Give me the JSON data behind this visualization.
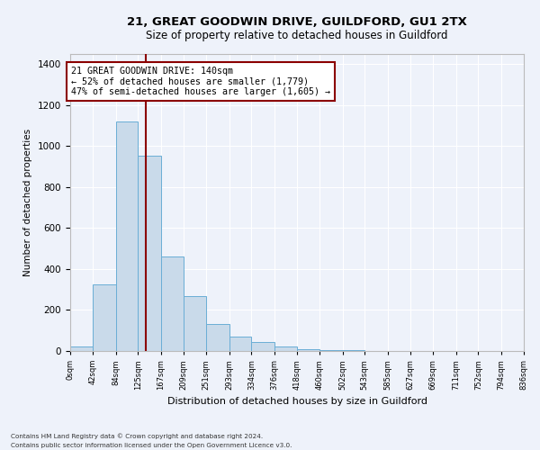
{
  "title": "21, GREAT GOODWIN DRIVE, GUILDFORD, GU1 2TX",
  "subtitle": "Size of property relative to detached houses in Guildford",
  "xlabel": "Distribution of detached houses by size in Guildford",
  "ylabel": "Number of detached properties",
  "footnote1": "Contains HM Land Registry data © Crown copyright and database right 2024.",
  "footnote2": "Contains public sector information licensed under the Open Government Licence v3.0.",
  "annotation_line1": "21 GREAT GOODWIN DRIVE: 140sqm",
  "annotation_line2": "← 52% of detached houses are smaller (1,779)",
  "annotation_line3": "47% of semi-detached houses are larger (1,605) →",
  "bar_color": "#c9daea",
  "bar_edge_color": "#6aaed6",
  "marker_color": "#8b0000",
  "background_color": "#eef2fa",
  "grid_color": "#ffffff",
  "bin_edges": [
    0,
    42,
    84,
    125,
    167,
    209,
    251,
    293,
    334,
    376,
    418,
    460,
    502,
    543,
    585,
    627,
    669,
    711,
    752,
    794,
    836
  ],
  "bin_heights": [
    20,
    325,
    1120,
    955,
    460,
    270,
    130,
    70,
    45,
    20,
    10,
    5,
    3,
    2,
    2,
    1,
    1,
    1,
    1,
    1
  ],
  "property_size": 140,
  "ylim": [
    0,
    1450
  ],
  "xlim": [
    0,
    836
  ]
}
